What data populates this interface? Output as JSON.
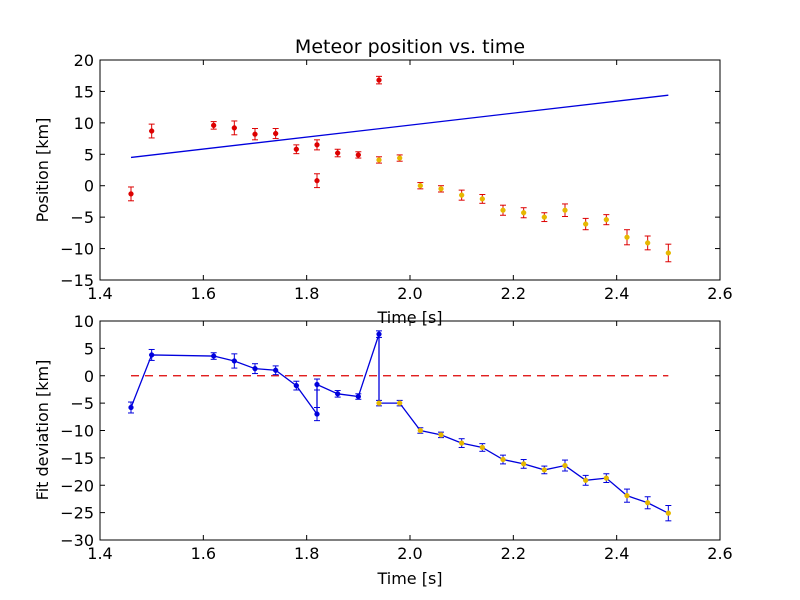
{
  "chart_data": [
    {
      "type": "scatter",
      "title": "Meteor position vs. time",
      "xlabel": "Time [s]",
      "ylabel": "Position [km]",
      "xlim": [
        1.4,
        2.6
      ],
      "ylim": [
        -15,
        20
      ],
      "xticks": [
        "1.4",
        "1.6",
        "1.8",
        "2.0",
        "2.2",
        "2.4",
        "2.6"
      ],
      "yticks": [
        "20",
        "15",
        "10",
        "5",
        "0",
        "−5",
        "−10",
        "−15"
      ],
      "yticks_values": [
        20,
        15,
        10,
        5,
        0,
        -5,
        -10,
        -15
      ],
      "xticks_values": [
        1.4,
        1.6,
        1.8,
        2.0,
        2.2,
        2.4,
        2.6
      ],
      "series": [
        {
          "marker_color": "#dd0000",
          "errorbar_color": "#dd0000",
          "x": [
            1.46,
            1.5,
            1.62,
            1.66,
            1.7,
            1.74,
            1.78,
            1.82,
            1.82,
            1.86,
            1.9,
            1.94
          ],
          "y": [
            -1.3,
            8.7,
            9.6,
            9.2,
            8.2,
            8.3,
            5.8,
            6.5,
            0.8,
            5.2,
            4.9,
            16.8
          ],
          "err": [
            1.1,
            1.1,
            0.6,
            1.1,
            0.9,
            0.8,
            0.7,
            0.8,
            1.1,
            0.6,
            0.5,
            0.6
          ]
        },
        {
          "marker_color": "#e6b800",
          "errorbar_color": "#dd0000",
          "x": [
            1.94,
            1.98,
            2.02,
            2.06,
            2.1,
            2.14,
            2.18,
            2.22,
            2.26,
            2.3,
            2.34,
            2.38,
            2.42,
            2.46,
            2.5
          ],
          "y": [
            4.1,
            4.4,
            0.0,
            -0.5,
            -1.5,
            -2.1,
            -3.9,
            -4.3,
            -5.0,
            -3.9,
            -6.1,
            -5.4,
            -8.2,
            -9.1,
            -10.7
          ],
          "err": [
            0.5,
            0.5,
            0.5,
            0.5,
            0.8,
            0.7,
            0.8,
            0.8,
            0.7,
            1.0,
            0.9,
            0.8,
            1.2,
            1.1,
            1.4
          ]
        }
      ],
      "fit_line": {
        "color": "#0000dd",
        "x": [
          1.46,
          2.5
        ],
        "y": [
          4.5,
          14.4
        ]
      }
    },
    {
      "type": "line",
      "title": "",
      "xlabel": "Time [s]",
      "ylabel": "Fit deviation [km]",
      "xlim": [
        1.4,
        2.6
      ],
      "ylim": [
        -30,
        10
      ],
      "xticks": [
        "1.4",
        "1.6",
        "1.8",
        "2.0",
        "2.2",
        "2.4",
        "2.6"
      ],
      "xticks_values": [
        1.4,
        1.6,
        1.8,
        2.0,
        2.2,
        2.4,
        2.6
      ],
      "yticks": [
        "10",
        "5",
        "0",
        "−5",
        "−10",
        "−15",
        "−20",
        "−25",
        "−30"
      ],
      "yticks_values": [
        10,
        5,
        0,
        -5,
        -10,
        -15,
        -20,
        -25,
        -30
      ],
      "line_color": "#0000dd",
      "series": [
        {
          "marker_color": "#0000dd",
          "x": [
            1.46,
            1.5,
            1.62,
            1.66,
            1.7,
            1.74,
            1.78,
            1.82,
            1.82,
            1.86,
            1.9,
            1.94
          ],
          "y": [
            -5.8,
            3.8,
            3.6,
            2.7,
            1.3,
            1.0,
            -1.8,
            -7.0,
            -1.6,
            -3.3,
            -3.8,
            7.6
          ],
          "err": [
            1.0,
            1.0,
            0.6,
            1.3,
            0.9,
            0.8,
            0.8,
            1.2,
            1.0,
            0.6,
            0.5,
            0.6
          ]
        },
        {
          "marker_color": "#e6b800",
          "x": [
            1.94,
            1.98,
            2.02,
            2.06,
            2.1,
            2.14,
            2.18,
            2.22,
            2.26,
            2.3,
            2.34,
            2.38,
            2.42,
            2.46,
            2.5
          ],
          "y": [
            -5.0,
            -5.0,
            -10.0,
            -10.8,
            -12.3,
            -13.1,
            -15.3,
            -16.1,
            -17.2,
            -16.4,
            -19.1,
            -18.7,
            -21.9,
            -23.2,
            -25.1
          ],
          "err": [
            0.5,
            0.5,
            0.5,
            0.5,
            0.8,
            0.7,
            0.8,
            0.8,
            0.7,
            1.0,
            0.9,
            0.8,
            1.2,
            1.1,
            1.4
          ]
        }
      ],
      "reference_line": {
        "color": "#dd0000",
        "style": "dashed",
        "x": [
          1.46,
          2.5
        ],
        "y": [
          0,
          0
        ]
      }
    }
  ]
}
